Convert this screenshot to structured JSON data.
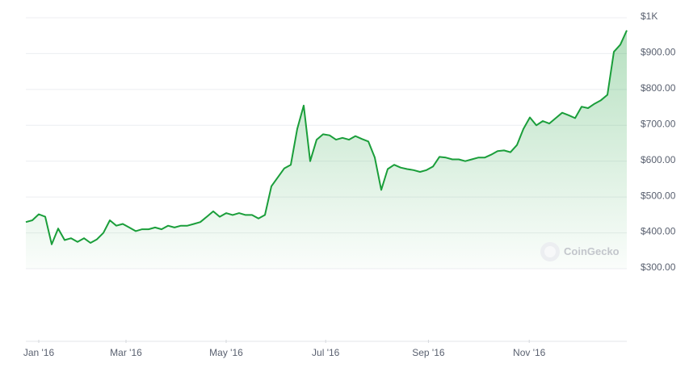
{
  "chart_data": {
    "type": "line",
    "color": "#1a9e3a",
    "grid": true,
    "watermark": "CoinGecko",
    "values": [
      430,
      435,
      452,
      445,
      368,
      412,
      380,
      385,
      375,
      385,
      372,
      382,
      400,
      435,
      420,
      425,
      415,
      405,
      410,
      410,
      415,
      410,
      420,
      415,
      420,
      420,
      425,
      430,
      445,
      460,
      445,
      455,
      450,
      455,
      450,
      450,
      440,
      450,
      530,
      555,
      580,
      590,
      690,
      755,
      600,
      660,
      675,
      672,
      660,
      665,
      660,
      670,
      662,
      655,
      610,
      520,
      578,
      590,
      582,
      578,
      575,
      570,
      575,
      585,
      612,
      610,
      605,
      605,
      600,
      605,
      610,
      610,
      618,
      628,
      630,
      625,
      645,
      690,
      722,
      700,
      712,
      705,
      720,
      735,
      728,
      720,
      752,
      748,
      760,
      770,
      785,
      905,
      925,
      965
    ],
    "xlim": [
      0,
      93
    ],
    "xticks": [
      {
        "value": 2,
        "label": "Jan '16"
      },
      {
        "value": 15.5,
        "label": "Mar '16"
      },
      {
        "value": 31,
        "label": "May '16"
      },
      {
        "value": 46.4,
        "label": "Jul '16"
      },
      {
        "value": 62.3,
        "label": "Sep '16"
      },
      {
        "value": 77.9,
        "label": "Nov '16"
      }
    ],
    "ylim": [
      300,
      1000
    ],
    "yticks": [
      {
        "value": 300,
        "label": "$300.00"
      },
      {
        "value": 400,
        "label": "$400.00"
      },
      {
        "value": 500,
        "label": "$500.00"
      },
      {
        "value": 600,
        "label": "$600.00"
      },
      {
        "value": 700,
        "label": "$700.00"
      },
      {
        "value": 800,
        "label": "$800.00"
      },
      {
        "value": 900,
        "label": "$900.00"
      },
      {
        "value": 1000,
        "label": "$1K"
      }
    ]
  }
}
